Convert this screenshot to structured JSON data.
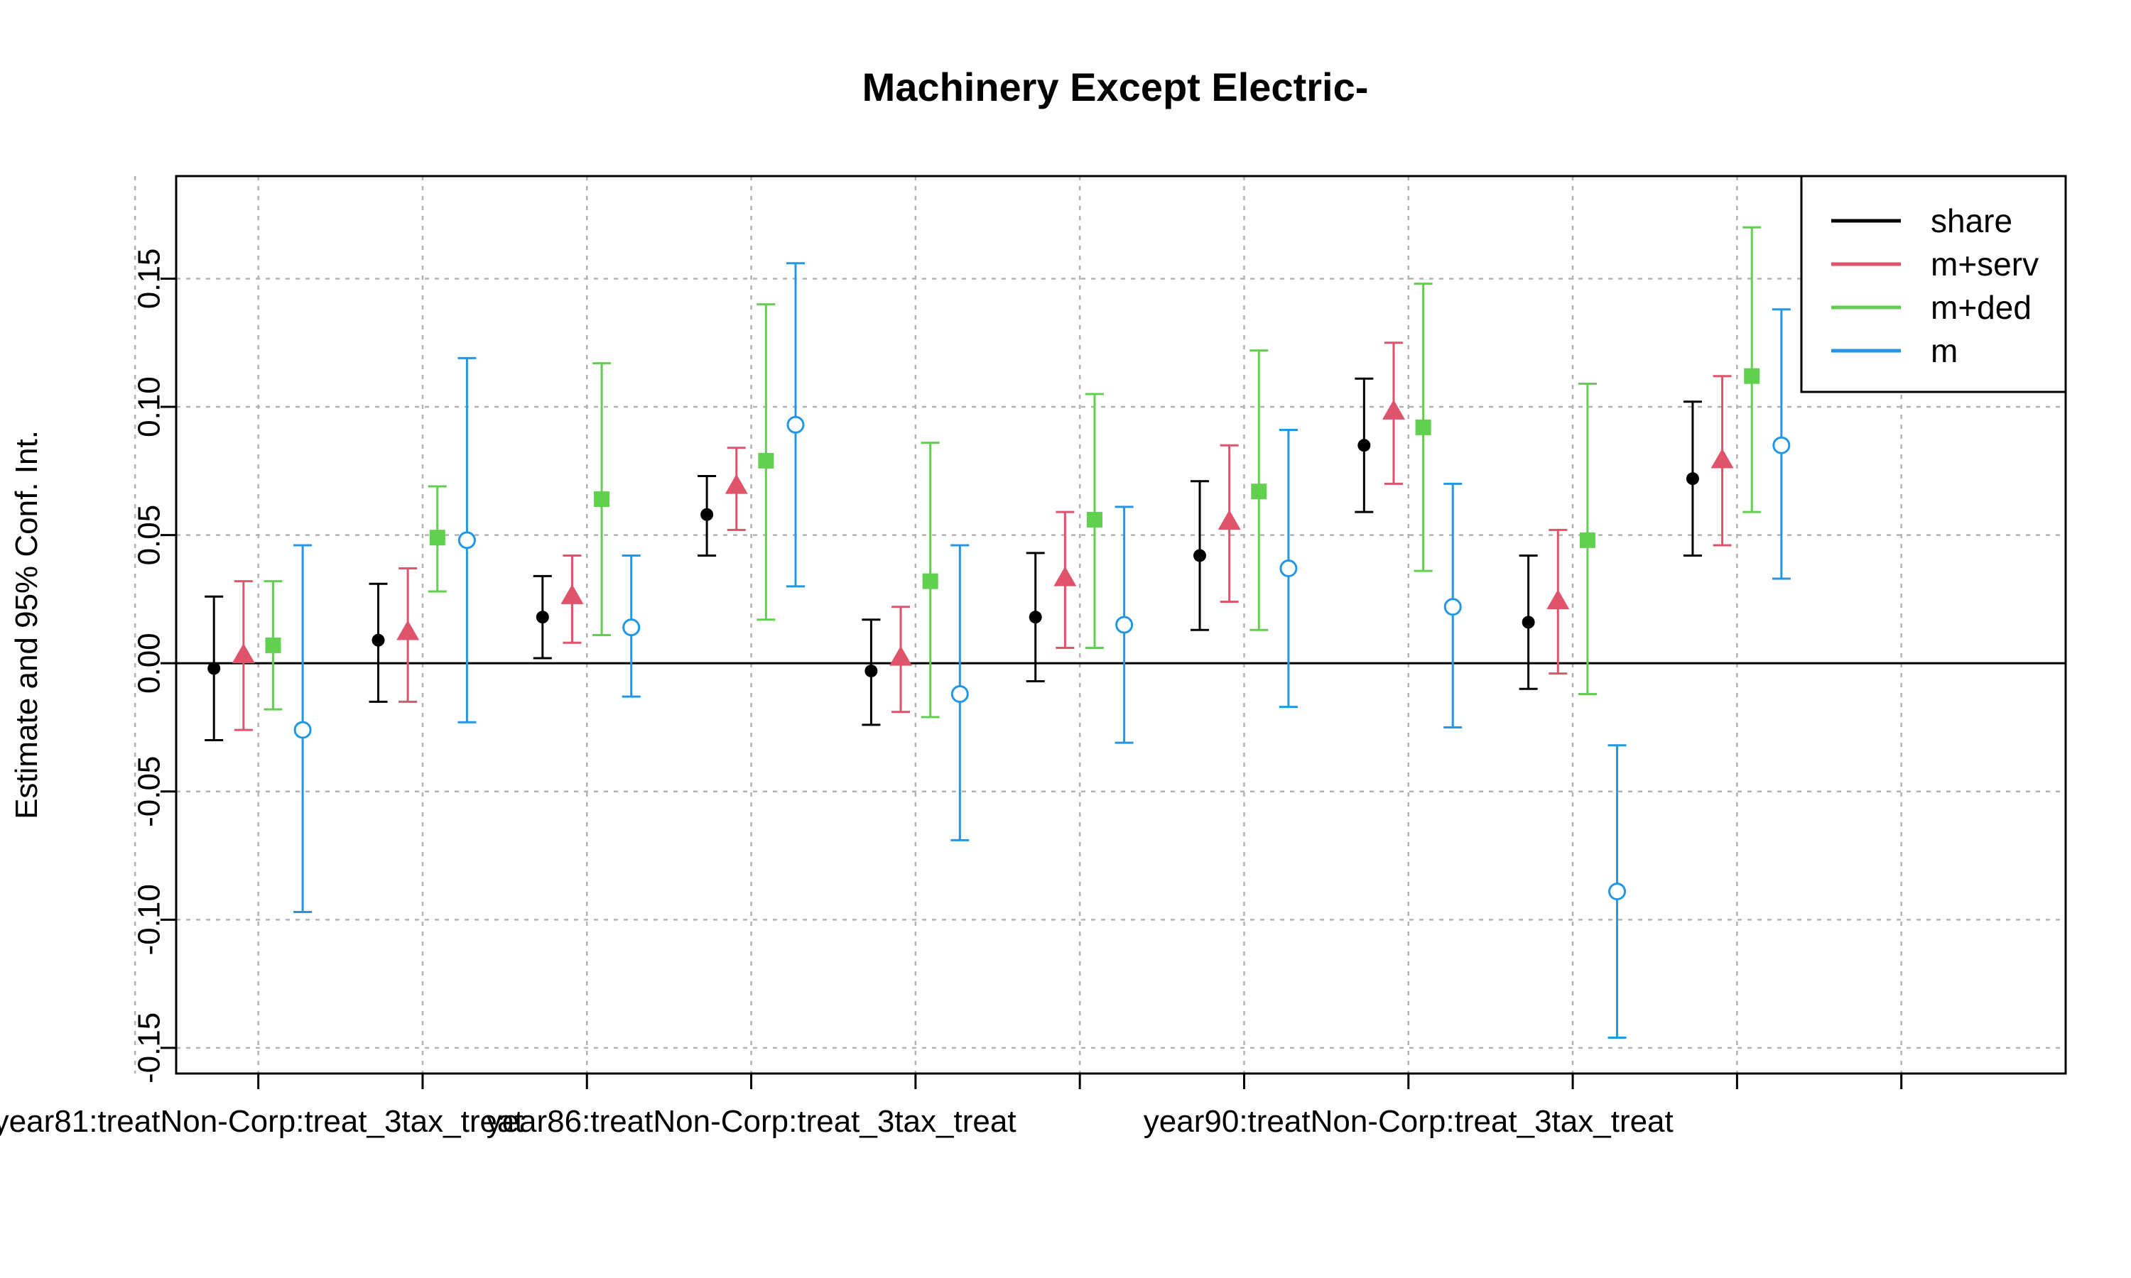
{
  "chart_data": {
    "type": "errorbar",
    "title": "Machinery Except Electric-",
    "xlabel": "",
    "ylabel": "Estimate and 95% Conf. Int.",
    "ylim": [
      -0.16,
      0.19
    ],
    "yticks": [
      -0.15,
      -0.1,
      -0.05,
      0.0,
      0.05,
      0.1,
      0.15
    ],
    "ytick_labels": [
      "-0.15",
      "-0.10",
      "-0.05",
      "0.00",
      "0.05",
      "0.10",
      "0.15"
    ],
    "xlim": [
      0.5,
      12
    ],
    "xticks": [
      1,
      2,
      3,
      4,
      5,
      6,
      7,
      8,
      9,
      10,
      11
    ],
    "xtick_labels": [
      "year81:treatNon-Corp:treat_3tax_treat",
      "",
      "",
      "year86:treatNon-Corp:treat_3tax_treat",
      "",
      "",
      "",
      "year90:treatNon-Corp:treat_3tax_treat",
      "",
      "",
      ""
    ],
    "x_gridlines": [
      0.25,
      1,
      2,
      3,
      4,
      5,
      6,
      7,
      8,
      9,
      10,
      11
    ],
    "grid": true,
    "reference_line": 0,
    "legend": {
      "position": "top-right",
      "entries": [
        "share",
        "m+serv",
        "m+ded",
        "m"
      ]
    },
    "series": [
      {
        "name": "share",
        "color": "#000000",
        "marker": "filled-circle",
        "offset": -0.27,
        "estimate": [
          -0.002,
          0.009,
          0.018,
          0.058,
          -0.003,
          0.018,
          0.042,
          0.085,
          0.016,
          0.072
        ],
        "lower": [
          -0.03,
          -0.015,
          0.002,
          0.042,
          -0.024,
          -0.007,
          0.013,
          0.059,
          -0.01,
          0.042
        ],
        "upper": [
          0.026,
          0.031,
          0.034,
          0.073,
          0.017,
          0.043,
          0.071,
          0.111,
          0.042,
          0.102
        ]
      },
      {
        "name": "m+serv",
        "color": "#DF536B",
        "marker": "filled-triangle",
        "offset": -0.09,
        "estimate": [
          0.003,
          0.012,
          0.026,
          0.069,
          0.002,
          0.033,
          0.055,
          0.098,
          0.024,
          0.079
        ],
        "lower": [
          -0.026,
          -0.015,
          0.008,
          0.052,
          -0.019,
          0.006,
          0.024,
          0.07,
          -0.004,
          0.046
        ],
        "upper": [
          0.032,
          0.037,
          0.042,
          0.084,
          0.022,
          0.059,
          0.085,
          0.125,
          0.052,
          0.112
        ]
      },
      {
        "name": "m+ded",
        "color": "#61D04F",
        "marker": "filled-square",
        "offset": 0.09,
        "estimate": [
          0.007,
          0.049,
          0.064,
          0.079,
          0.032,
          0.056,
          0.067,
          0.092,
          0.048,
          0.112
        ],
        "lower": [
          -0.018,
          0.028,
          0.011,
          0.017,
          -0.021,
          0.006,
          0.013,
          0.036,
          -0.012,
          0.059
        ],
        "upper": [
          0.032,
          0.069,
          0.117,
          0.14,
          0.086,
          0.105,
          0.122,
          0.148,
          0.109,
          0.17
        ]
      },
      {
        "name": "m",
        "color": "#2297E6",
        "marker": "open-circle",
        "offset": 0.27,
        "estimate": [
          -0.026,
          0.048,
          0.014,
          0.093,
          -0.012,
          0.015,
          0.037,
          0.022,
          -0.089,
          0.085
        ],
        "lower": [
          -0.097,
          -0.023,
          -0.013,
          0.03,
          -0.069,
          -0.031,
          -0.017,
          -0.025,
          -0.146,
          0.033
        ],
        "upper": [
          0.046,
          0.119,
          0.042,
          0.156,
          0.046,
          0.061,
          0.091,
          0.07,
          -0.032,
          0.138
        ]
      }
    ]
  }
}
